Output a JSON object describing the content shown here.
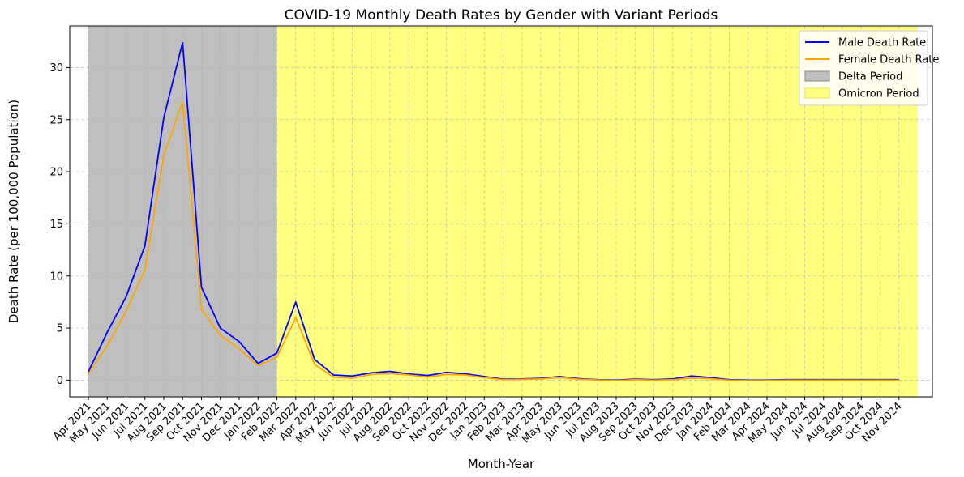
{
  "chart_data": {
    "type": "line",
    "title": "COVID-19 Monthly Death Rates by Gender with Variant Periods",
    "xlabel": "Month-Year",
    "ylabel": "Death Rate (per 100,000 Population)",
    "ylim": [
      -1.6,
      34.0
    ],
    "yticks": [
      0,
      5,
      10,
      15,
      20,
      25,
      30
    ],
    "grid": true,
    "legend_position": "top-right",
    "categories": [
      "Apr 2021",
      "May 2021",
      "Jun 2021",
      "Jul 2021",
      "Aug 2021",
      "Sep 2021",
      "Oct 2021",
      "Nov 2021",
      "Dec 2021",
      "Jan 2022",
      "Feb 2022",
      "Mar 2022",
      "Apr 2022",
      "May 2022",
      "Jun 2022",
      "Jul 2022",
      "Aug 2022",
      "Sep 2022",
      "Oct 2022",
      "Nov 2022",
      "Dec 2022",
      "Jan 2023",
      "Feb 2023",
      "Mar 2023",
      "Apr 2023",
      "May 2023",
      "Jun 2023",
      "Jul 2023",
      "Aug 2023",
      "Sep 2023",
      "Oct 2023",
      "Nov 2023",
      "Dec 2023",
      "Jan 2024",
      "Feb 2024",
      "Mar 2024",
      "Apr 2024",
      "May 2024",
      "Jun 2024",
      "Jul 2024",
      "Aug 2024",
      "Sep 2024",
      "Oct 2024",
      "Nov 2024"
    ],
    "series": [
      {
        "name": "Male Death Rate",
        "color": "#0000ff",
        "values": [
          0.8,
          4.6,
          8.0,
          12.9,
          25.2,
          32.4,
          8.9,
          5.0,
          3.7,
          1.6,
          2.6,
          7.5,
          2.0,
          0.5,
          0.4,
          0.7,
          0.85,
          0.6,
          0.45,
          0.75,
          0.6,
          0.35,
          0.1,
          0.12,
          0.18,
          0.35,
          0.15,
          0.05,
          0.0,
          0.1,
          0.05,
          0.12,
          0.4,
          0.25,
          0.05,
          0.0,
          0.0,
          0.05,
          0.05,
          0.05,
          0.05,
          0.05,
          0.05,
          0.05
        ]
      },
      {
        "name": "Female Death Rate",
        "color": "#ffa500",
        "values": [
          0.6,
          3.3,
          6.6,
          10.6,
          21.6,
          26.7,
          6.8,
          4.3,
          3.0,
          1.4,
          2.2,
          6.0,
          1.5,
          0.3,
          0.2,
          0.55,
          0.65,
          0.5,
          0.3,
          0.55,
          0.5,
          0.25,
          0.05,
          0.08,
          0.12,
          0.25,
          0.1,
          0.02,
          -0.05,
          0.05,
          0.0,
          0.05,
          0.2,
          0.15,
          0.0,
          -0.05,
          -0.05,
          0.0,
          0.0,
          0.0,
          0.0,
          0.0,
          0.0,
          0.0
        ]
      }
    ],
    "spans": [
      {
        "name": "Delta Period",
        "from_index": 0,
        "to_index": 10,
        "color": "#bfbfbf"
      },
      {
        "name": "Omicron Period",
        "from_index": 10,
        "to_index": 44.0,
        "color": "#ffff80"
      }
    ]
  }
}
